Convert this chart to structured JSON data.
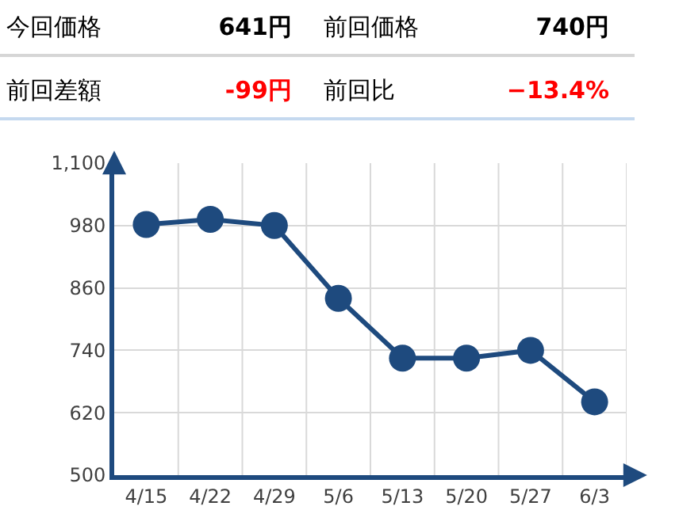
{
  "chart_data": {
    "type": "line",
    "annotations": [
      "今回価格",
      "641円",
      "前回価格",
      "740円",
      "前回差額",
      "-99円",
      "前回比",
      "−13.4%"
    ],
    "categories": [
      "4/15",
      "4/22",
      "4/29",
      "5/6",
      "5/13",
      "5/20",
      "5/27",
      "6/3"
    ],
    "series": [
      {
        "color": "#1e4a7e",
        "values": [
          982,
          992,
          980,
          840,
          725,
          725,
          740,
          641
        ]
      }
    ],
    "ylim": [
      500,
      1100
    ],
    "yticks": [
      500,
      620,
      740,
      860,
      980,
      {
        "value": 1100,
        "label": "1,100"
      }
    ],
    "grid": true,
    "marker": "circle",
    "line_style": "solid"
  }
}
